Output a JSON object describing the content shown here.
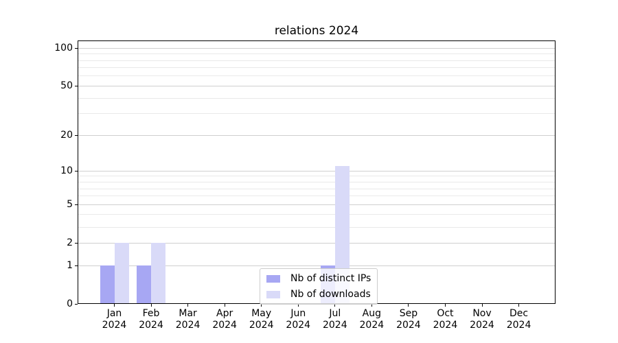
{
  "chart_data": {
    "type": "bar",
    "title": "relations 2024",
    "categories": [
      "Jan",
      "Feb",
      "Mar",
      "Apr",
      "May",
      "Jun",
      "Jul",
      "Aug",
      "Sep",
      "Oct",
      "Nov",
      "Dec"
    ],
    "year_label": "2024",
    "series": [
      {
        "name": "Nb of distinct IPs",
        "color": "#a7a7f3",
        "values": [
          1,
          1,
          0,
          0,
          0,
          0,
          1,
          0,
          0,
          0,
          0,
          0
        ]
      },
      {
        "name": "Nb of downloads",
        "color": "#d9daf8",
        "values": [
          2,
          2,
          0,
          0,
          0,
          0,
          11,
          0,
          0,
          0,
          0,
          0
        ]
      }
    ],
    "yscale": "log1p",
    "ylim": [
      0,
      115
    ],
    "yticks": [
      0,
      1,
      2,
      5,
      10,
      20,
      50,
      100
    ],
    "yticks_minor": [
      3,
      4,
      6,
      7,
      8,
      9,
      30,
      40,
      60,
      70,
      80,
      90
    ],
    "xlabel": "",
    "ylabel": "",
    "grid": "horizontal-major-and-minor",
    "legend_position": "lower-center",
    "colors": {
      "major_grid": "#cfcfcf",
      "minor_grid": "#e9e9e9",
      "axis_frame": "#000000",
      "background": "#ffffff"
    }
  }
}
